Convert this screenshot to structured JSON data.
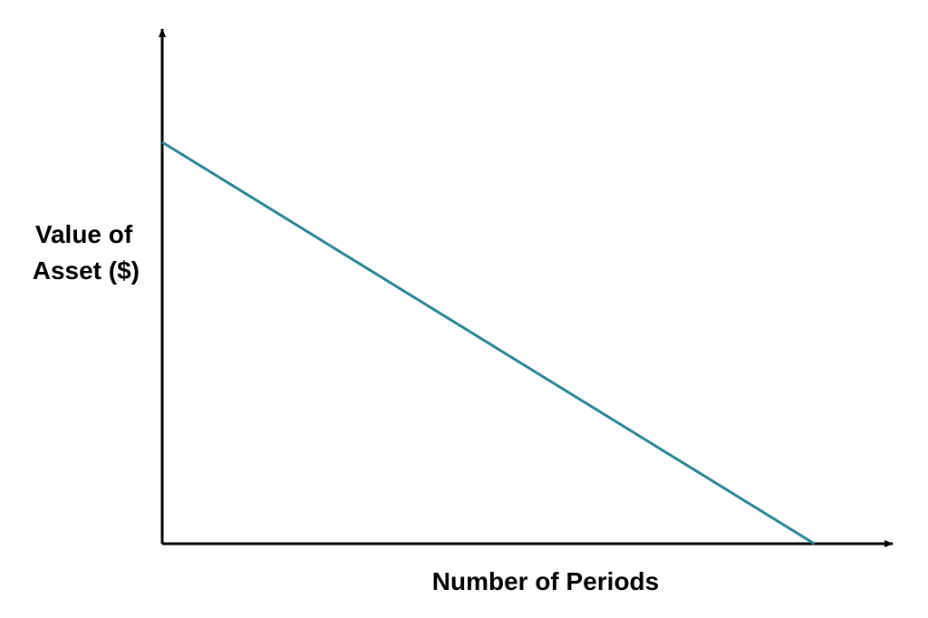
{
  "chart_data": {
    "type": "line",
    "title": "",
    "xlabel": "Number of Periods",
    "ylabel_lines": [
      "Value of",
      "Asset ($)"
    ],
    "x": [
      0,
      1
    ],
    "y": [
      0.78,
      0
    ],
    "xlim": [
      0,
      1.12
    ],
    "ylim": [
      0,
      1
    ],
    "grid": false,
    "tick_labels": false,
    "line_color": "#2a8597",
    "axis_color": "#000000"
  }
}
